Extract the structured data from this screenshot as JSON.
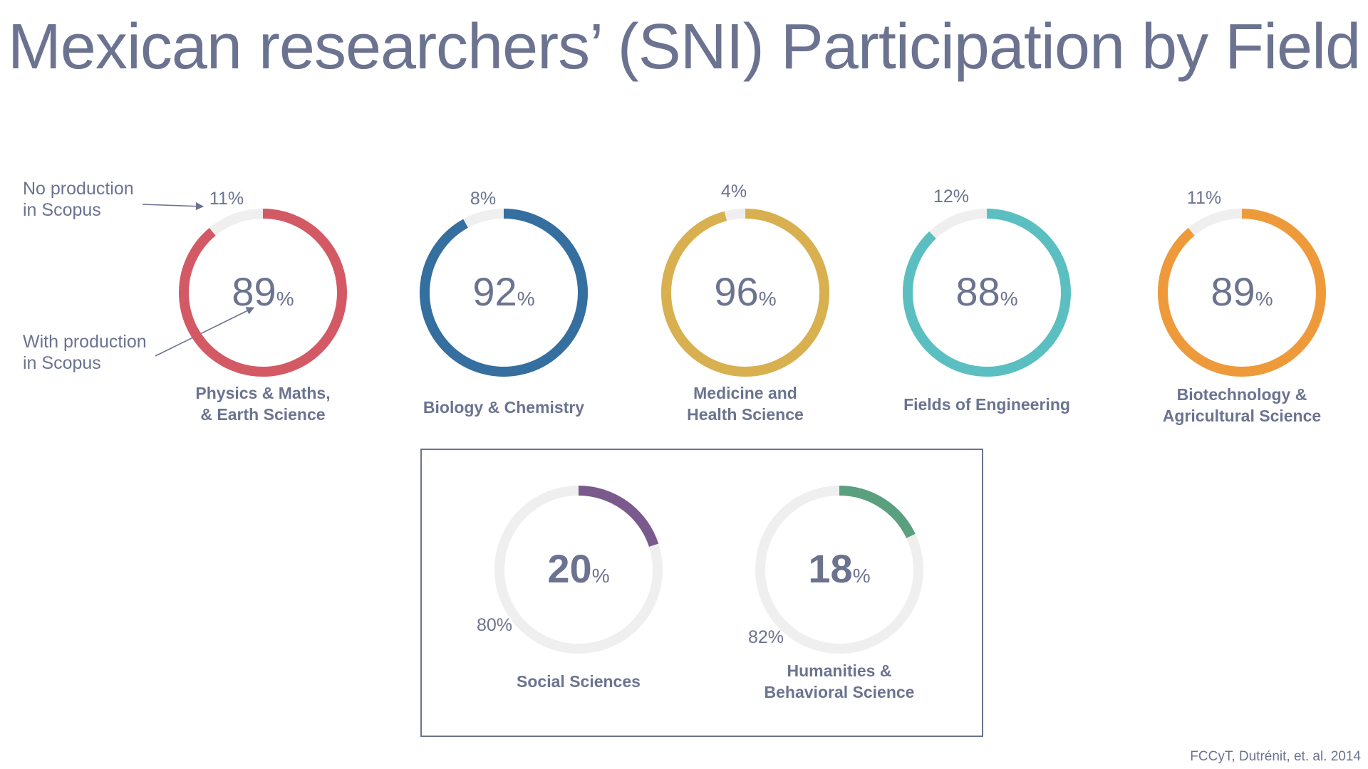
{
  "title": "Mexican researchers’ (SNI) Participation by Field",
  "callouts": {
    "no_production": "No production\nin Scopus",
    "with_production": "With production\nin Scopus"
  },
  "source": "FCCyT, Dutrénit, et. al. 2014",
  "colors": {
    "text": "#6b7390",
    "track": "#efefef",
    "box_border": "#6b7390"
  },
  "chart_data": [
    {
      "type": "pie",
      "label": "Physics & Maths,\n& Earth Science",
      "with_production_pct": 89,
      "no_production_pct": 11,
      "with_label": "89",
      "no_label": "11%",
      "color": "#d35a65",
      "group": "top"
    },
    {
      "type": "pie",
      "label": "Biology & Chemistry",
      "with_production_pct": 92,
      "no_production_pct": 8,
      "with_label": "92",
      "no_label": "8%",
      "color": "#356fa0",
      "group": "top"
    },
    {
      "type": "pie",
      "label": "Medicine and\nHealth Science",
      "with_production_pct": 96,
      "no_production_pct": 4,
      "with_label": "96",
      "no_label": "4%",
      "color": "#d9b04f",
      "group": "top"
    },
    {
      "type": "pie",
      "label": "Fields of Engineering",
      "with_production_pct": 88,
      "no_production_pct": 12,
      "with_label": "88",
      "no_label": "12%",
      "color": "#5bbfc1",
      "group": "top"
    },
    {
      "type": "pie",
      "label": "Biotechnology &\nAgricultural Science",
      "with_production_pct": 89,
      "no_production_pct": 11,
      "with_label": "89",
      "no_label": "11%",
      "color": "#ee9a3a",
      "group": "top"
    },
    {
      "type": "pie",
      "label": "Social Sciences",
      "with_production_pct": 20,
      "no_production_pct": 80,
      "with_label": "20",
      "no_label": "80%",
      "color": "#7a5a8d",
      "group": "highlighted"
    },
    {
      "type": "pie",
      "label": "Humanities &\nBehavioral Science",
      "with_production_pct": 18,
      "no_production_pct": 82,
      "with_label": "18",
      "no_label": "82%",
      "color": "#5aa07e",
      "group": "highlighted"
    }
  ]
}
